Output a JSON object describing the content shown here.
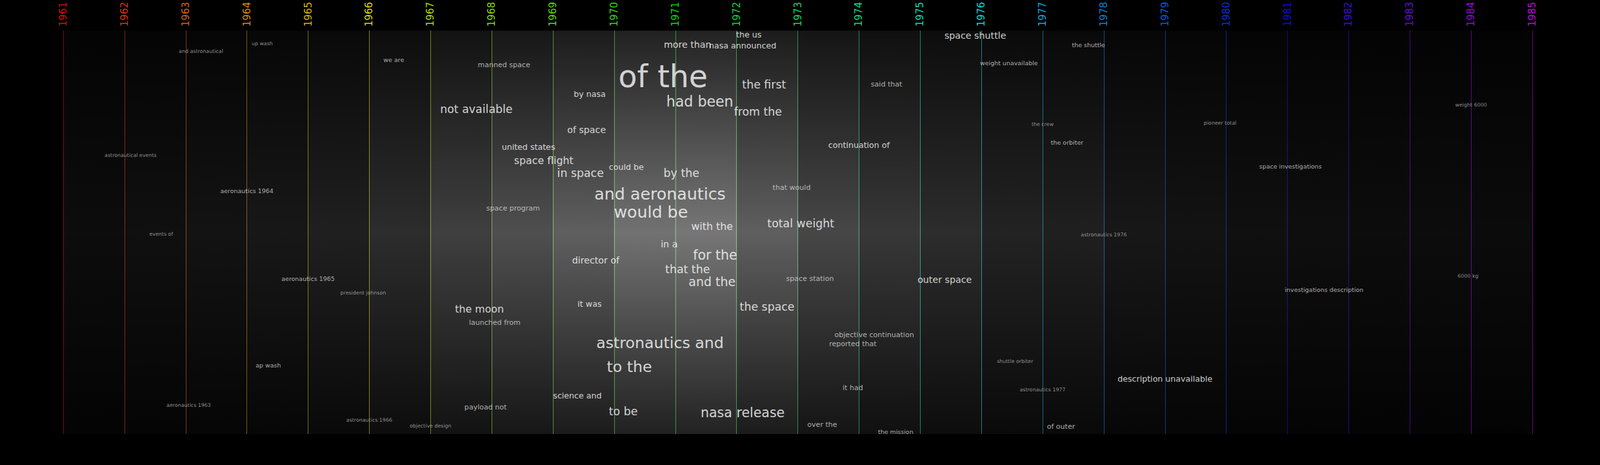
{
  "chart_data": {
    "type": "text_timeline",
    "xlim": [
      1961,
      1985
    ],
    "xticks": [
      1961,
      1962,
      1963,
      1964,
      1965,
      1966,
      1967,
      1968,
      1969,
      1970,
      1971,
      1972,
      1973,
      1974,
      1975,
      1976,
      1977,
      1978,
      1979,
      1980,
      1981,
      1982,
      1983,
      1984,
      1985
    ],
    "ylim": [
      0,
      100
    ],
    "grid": true,
    "tick_labels": "x",
    "density": {
      "x": [
        1961,
        1962,
        1963,
        1964,
        1965,
        1966,
        1967,
        1968,
        1969,
        1970,
        1971,
        1972,
        1973,
        1974,
        1975,
        1976,
        1977,
        1978,
        1979,
        1980,
        1981,
        1982,
        1983,
        1984
      ],
      "values": [
        0.08,
        0.1,
        0.12,
        0.15,
        0.2,
        0.28,
        0.4,
        0.5,
        0.6,
        0.72,
        0.75,
        0.6,
        0.45,
        0.35,
        0.28,
        0.22,
        0.2,
        0.15,
        0.12,
        0.1,
        0.09,
        0.08,
        0.08,
        0.07
      ]
    },
    "words": [
      {
        "text": "space shuttle",
        "x": 1975.9,
        "y": 98.7,
        "size": 9
      },
      {
        "text": "the shuttle",
        "x": 1977.75,
        "y": 96.5,
        "size": 6
      },
      {
        "text": "the us",
        "x": 1972.2,
        "y": 99.0,
        "size": 8
      },
      {
        "text": "more than",
        "x": 1971.2,
        "y": 96.5,
        "size": 9
      },
      {
        "text": "nasa announced",
        "x": 1972.1,
        "y": 96.2,
        "size": 8
      },
      {
        "text": "of the",
        "x": 1970.8,
        "y": 88.6,
        "size": 30
      },
      {
        "text": "the first",
        "x": 1972.45,
        "y": 86.6,
        "size": 11
      },
      {
        "text": "had been",
        "x": 1971.4,
        "y": 82.5,
        "size": 14
      },
      {
        "text": "from the",
        "x": 1972.35,
        "y": 79.8,
        "size": 11
      },
      {
        "text": "not available",
        "x": 1967.75,
        "y": 80.5,
        "size": 11
      },
      {
        "text": "said that",
        "x": 1974.45,
        "y": 86.6,
        "size": 7
      },
      {
        "text": "weight unavailable",
        "x": 1976.45,
        "y": 91.9,
        "size": 6
      },
      {
        "text": "manned space",
        "x": 1968.2,
        "y": 91.4,
        "size": 7
      },
      {
        "text": "by nasa",
        "x": 1969.6,
        "y": 84.3,
        "size": 8
      },
      {
        "text": "of space",
        "x": 1969.55,
        "y": 75.4,
        "size": 9
      },
      {
        "text": "continuation of",
        "x": 1974.0,
        "y": 71.6,
        "size": 8
      },
      {
        "text": "united states",
        "x": 1968.6,
        "y": 71.1,
        "size": 8
      },
      {
        "text": "space flight",
        "x": 1968.85,
        "y": 67.8,
        "size": 10
      },
      {
        "text": "in space",
        "x": 1969.45,
        "y": 64.6,
        "size": 11
      },
      {
        "text": "could be",
        "x": 1970.2,
        "y": 66.1,
        "size": 8
      },
      {
        "text": "by the",
        "x": 1971.1,
        "y": 64.6,
        "size": 11
      },
      {
        "text": "and aeronautics",
        "x": 1970.75,
        "y": 59.5,
        "size": 16
      },
      {
        "text": "would be",
        "x": 1970.6,
        "y": 55.0,
        "size": 16
      },
      {
        "text": "that would",
        "x": 1972.9,
        "y": 61.0,
        "size": 7
      },
      {
        "text": "space program",
        "x": 1968.35,
        "y": 55.9,
        "size": 7
      },
      {
        "text": "with the",
        "x": 1971.6,
        "y": 51.5,
        "size": 10
      },
      {
        "text": "total weight",
        "x": 1973.05,
        "y": 52.2,
        "size": 11
      },
      {
        "text": "in a",
        "x": 1970.9,
        "y": 47.0,
        "size": 9
      },
      {
        "text": "for the",
        "x": 1971.65,
        "y": 44.3,
        "size": 13
      },
      {
        "text": "that the",
        "x": 1971.2,
        "y": 40.8,
        "size": 11
      },
      {
        "text": "and the",
        "x": 1971.6,
        "y": 37.7,
        "size": 12
      },
      {
        "text": "director of",
        "x": 1969.7,
        "y": 43.0,
        "size": 9
      },
      {
        "text": "the space",
        "x": 1972.5,
        "y": 31.6,
        "size": 11
      },
      {
        "text": "the moon",
        "x": 1967.8,
        "y": 30.9,
        "size": 10
      },
      {
        "text": "launched from",
        "x": 1968.05,
        "y": 27.6,
        "size": 7
      },
      {
        "text": "outer space",
        "x": 1975.4,
        "y": 38.2,
        "size": 9
      },
      {
        "text": "objective continuation",
        "x": 1974.25,
        "y": 24.6,
        "size": 7
      },
      {
        "text": "reported that",
        "x": 1973.9,
        "y": 22.3,
        "size": 7
      },
      {
        "text": "astronautics and",
        "x": 1970.75,
        "y": 22.5,
        "size": 15
      },
      {
        "text": "to the",
        "x": 1970.25,
        "y": 16.7,
        "size": 15
      },
      {
        "text": "it was",
        "x": 1969.6,
        "y": 32.2,
        "size": 8
      },
      {
        "text": "it had",
        "x": 1973.9,
        "y": 11.4,
        "size": 7
      },
      {
        "text": "nasa release",
        "x": 1972.1,
        "y": 5.3,
        "size": 13
      },
      {
        "text": "to be",
        "x": 1970.15,
        "y": 5.6,
        "size": 11
      },
      {
        "text": "space station",
        "x": 1973.2,
        "y": 38.5,
        "size": 7
      },
      {
        "text": "science and",
        "x": 1969.4,
        "y": 9.6,
        "size": 8
      },
      {
        "text": "payload not",
        "x": 1967.9,
        "y": 6.6,
        "size": 7
      },
      {
        "text": "over the",
        "x": 1973.4,
        "y": 2.3,
        "size": 7
      },
      {
        "text": "the mission",
        "x": 1974.6,
        "y": 0.5,
        "size": 6
      },
      {
        "text": "of outer",
        "x": 1977.3,
        "y": 1.8,
        "size": 7
      },
      {
        "text": "description unavailable",
        "x": 1979.0,
        "y": 13.7,
        "size": 8
      },
      {
        "text": "investigations description",
        "x": 1981.6,
        "y": 35.7,
        "size": 6
      },
      {
        "text": "space investigations",
        "x": 1981.05,
        "y": 66.3,
        "size": 6
      },
      {
        "text": "the orbiter",
        "x": 1977.4,
        "y": 72.2,
        "size": 6
      },
      {
        "text": "the crew",
        "x": 1977.0,
        "y": 76.7,
        "size": 5
      },
      {
        "text": "pioneer total",
        "x": 1979.9,
        "y": 77.0,
        "size": 5
      },
      {
        "text": "shuttle orbiter",
        "x": 1976.55,
        "y": 18.0,
        "size": 5
      },
      {
        "text": "astronautics 1977",
        "x": 1977.0,
        "y": 10.9,
        "size": 5
      },
      {
        "text": "astronautics 1976",
        "x": 1978.0,
        "y": 49.4,
        "size": 5
      },
      {
        "text": "aeronautics 1964",
        "x": 1964.0,
        "y": 60.3,
        "size": 6
      },
      {
        "text": "aeronautics 1965",
        "x": 1965.0,
        "y": 38.5,
        "size": 6
      },
      {
        "text": "aeronautics 1963",
        "x": 1963.05,
        "y": 7.1,
        "size": 5
      },
      {
        "text": "president johnson",
        "x": 1965.9,
        "y": 34.9,
        "size": 5
      },
      {
        "text": "ap wash",
        "x": 1964.35,
        "y": 17.0,
        "size": 6
      },
      {
        "text": "astronautical events",
        "x": 1962.1,
        "y": 69.1,
        "size": 5
      },
      {
        "text": "and astronautical",
        "x": 1963.25,
        "y": 94.9,
        "size": 5
      },
      {
        "text": "we are",
        "x": 1966.4,
        "y": 92.7,
        "size": 6
      },
      {
        "text": "weight 6000",
        "x": 1984.0,
        "y": 81.5,
        "size": 5
      },
      {
        "text": "6000 kg",
        "x": 1983.95,
        "y": 39.2,
        "size": 5
      },
      {
        "text": "astronautics 1966",
        "x": 1966.0,
        "y": 3.5,
        "size": 5
      },
      {
        "text": "objective design",
        "x": 1967.0,
        "y": 2.0,
        "size": 5
      },
      {
        "text": "up wash",
        "x": 1964.25,
        "y": 96.7,
        "size": 5
      },
      {
        "text": "events of",
        "x": 1962.6,
        "y": 49.6,
        "size": 5
      }
    ]
  }
}
